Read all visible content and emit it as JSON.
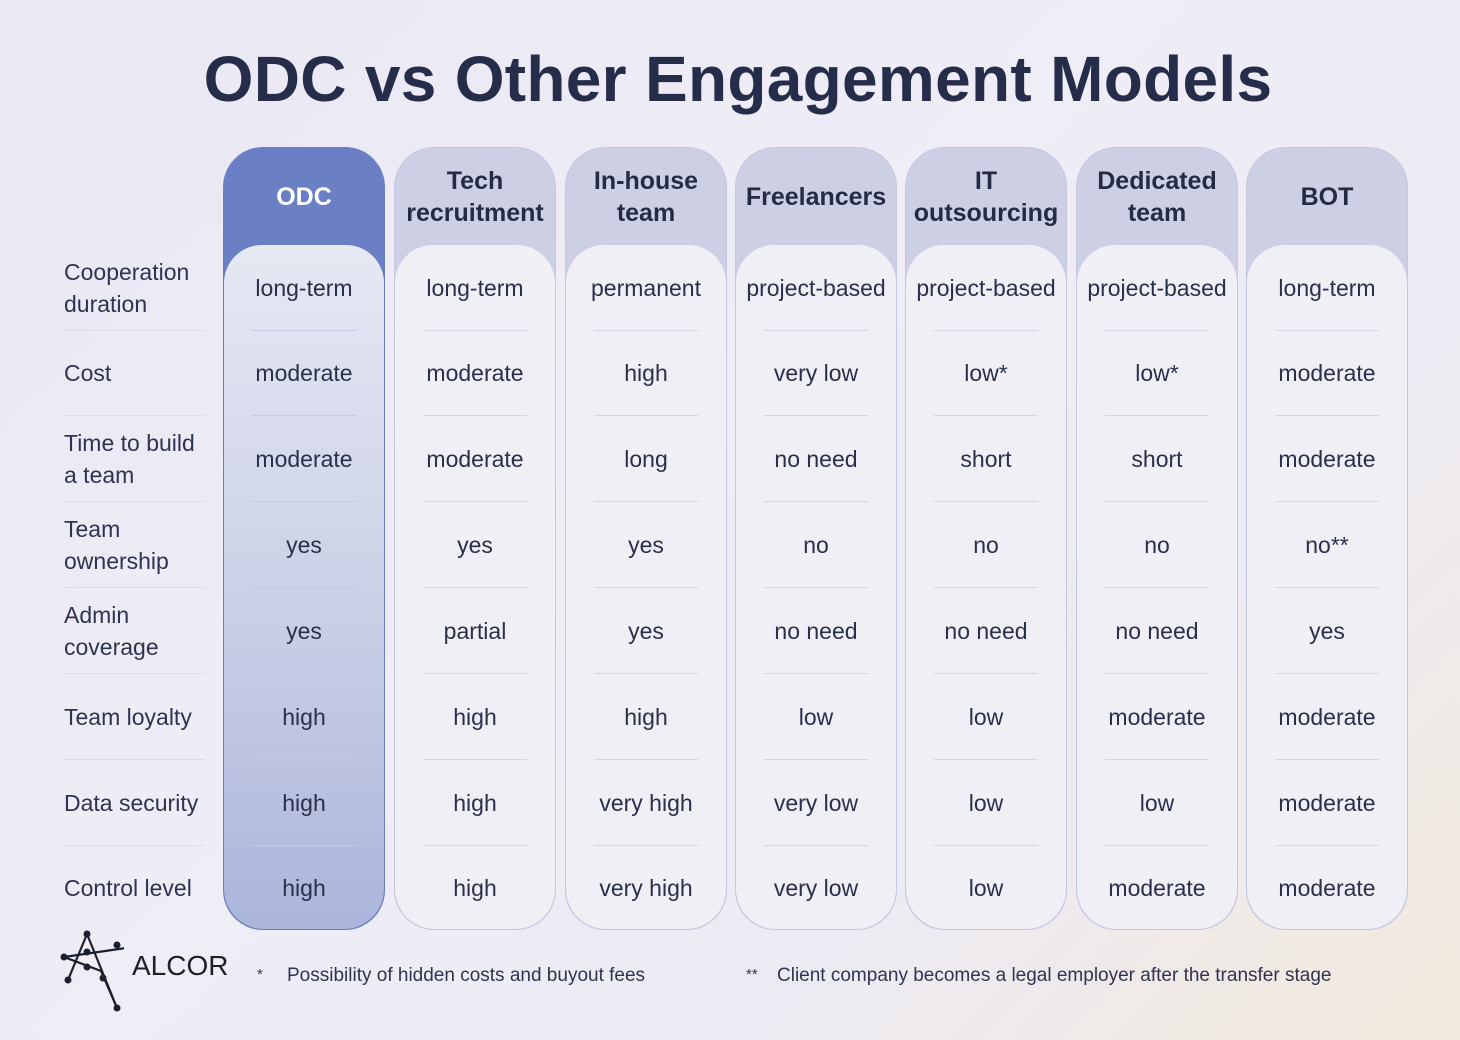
{
  "title": "ODC vs Other Engagement Models",
  "accent_color": "#6b7fc4",
  "row_labels": [
    "Cooperation duration",
    "Cost",
    "Time to build a team",
    "Team ownership",
    "Admin coverage",
    "Team loyalty",
    "Data security",
    "Control level"
  ],
  "columns": [
    {
      "name": "ODC",
      "highlight": true,
      "values": [
        "long-term",
        "moderate",
        "moderate",
        "yes",
        "yes",
        "high",
        "high",
        "high"
      ]
    },
    {
      "name": "Tech recruitment",
      "values": [
        "long-term",
        "moderate",
        "moderate",
        "yes",
        "partial",
        "high",
        "high",
        "high"
      ]
    },
    {
      "name": "In-house team",
      "values": [
        "permanent",
        "high",
        "long",
        "yes",
        "yes",
        "high",
        "very high",
        "very high"
      ]
    },
    {
      "name": "Freelancers",
      "values": [
        "project-based",
        "very low",
        "no need",
        "no",
        "no need",
        "low",
        "very low",
        "very low"
      ]
    },
    {
      "name": "IT outsourcing",
      "values": [
        "project-based",
        "low*",
        "short",
        "no",
        "no need",
        "low",
        "low",
        "low"
      ]
    },
    {
      "name": "Dedicated team",
      "values": [
        "project-based",
        "low*",
        "short",
        "no",
        "no need",
        "moderate",
        "low",
        "moderate"
      ]
    },
    {
      "name": "BOT",
      "values": [
        "long-term",
        "moderate",
        "moderate",
        "no**",
        "yes",
        "moderate",
        "moderate",
        "moderate"
      ]
    }
  ],
  "footer": {
    "logo_text": "ALCOR",
    "note1_mark": "*",
    "note1": "Possibility of hidden costs and buyout fees",
    "note2_mark": "**",
    "note2": "Client company becomes a legal employer after the transfer stage"
  }
}
